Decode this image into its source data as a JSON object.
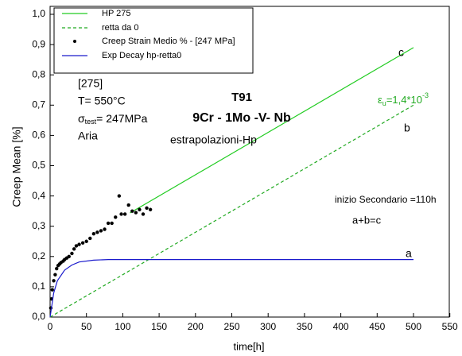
{
  "chart_data": {
    "type": "line",
    "xlabel": "time[h]",
    "ylabel": "Creep Mean [%]",
    "xlim": [
      0,
      550
    ],
    "xticks": [
      0,
      50,
      100,
      150,
      200,
      250,
      300,
      350,
      400,
      450,
      500,
      550
    ],
    "ylim": [
      0,
      1.0
    ],
    "yticks": [
      {
        "value": 0,
        "label": "0,0"
      },
      {
        "value": 0.1,
        "label": "0,1"
      },
      {
        "value": 0.2,
        "label": "0,2"
      },
      {
        "value": 0.3,
        "label": "0,3"
      },
      {
        "value": 0.4,
        "label": "0,4"
      },
      {
        "value": 0.5,
        "label": "0,5"
      },
      {
        "value": 0.6,
        "label": "0,6"
      },
      {
        "value": 0.7,
        "label": "0,7"
      },
      {
        "value": 0.8,
        "label": "0,8"
      },
      {
        "value": 0.9,
        "label": "0,9"
      },
      {
        "value": 1.0,
        "label": "1,0"
      }
    ],
    "series": [
      {
        "name": "HP 275",
        "color": "#22cc22",
        "style": "solid",
        "x": [
          110,
          500
        ],
        "values": [
          0.344,
          0.89
        ]
      },
      {
        "name": "retta da 0",
        "color": "#22aa22",
        "style": "dashed",
        "x": [
          0,
          500
        ],
        "values": [
          0,
          0.7
        ]
      },
      {
        "name": "Creep Strain Medio %  - [247 MPa]",
        "color": "#000000",
        "style": "points",
        "x": [
          1,
          2,
          3,
          5,
          7,
          9,
          11,
          13,
          15,
          18,
          20,
          23,
          26,
          30,
          33,
          36,
          40,
          45,
          50,
          55,
          60,
          65,
          70,
          75,
          80,
          85,
          90,
          95,
          98,
          103,
          108,
          113,
          118,
          123,
          128,
          133,
          138
        ],
        "values": [
          0.03,
          0.06,
          0.09,
          0.12,
          0.14,
          0.16,
          0.17,
          0.175,
          0.18,
          0.185,
          0.19,
          0.195,
          0.2,
          0.21,
          0.225,
          0.235,
          0.24,
          0.245,
          0.25,
          0.26,
          0.275,
          0.28,
          0.285,
          0.29,
          0.31,
          0.31,
          0.33,
          0.4,
          0.34,
          0.34,
          0.37,
          0.35,
          0.345,
          0.355,
          0.34,
          0.36,
          0.355
        ]
      },
      {
        "name": "Exp Decay hp-retta0",
        "color": "#1a1acc",
        "style": "solid",
        "x": [
          0,
          5,
          10,
          20,
          30,
          40,
          60,
          80,
          500
        ],
        "values": [
          0,
          0.08,
          0.12,
          0.155,
          0.172,
          0.182,
          0.188,
          0.19,
          0.19
        ]
      }
    ],
    "annotations": [
      "c",
      "b",
      "a",
      "[275]",
      "T= 550°C",
      "Aria",
      "T91",
      "9Cr - 1Mo -V- Nb",
      "estrapolazioni-Hp",
      "inizio Secondario =110h",
      "a+b=c"
    ],
    "strain_rate_label": [
      "ε",
      "u",
      "=1,4*10",
      "-3"
    ],
    "stress_label": [
      "σ",
      "test",
      "= 247MPa"
    ]
  }
}
